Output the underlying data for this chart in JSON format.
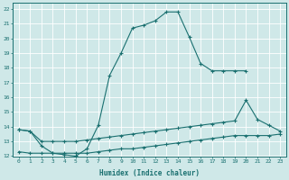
{
  "xlabel": "Humidex (Indice chaleur)",
  "xlim": [
    -0.5,
    23.5
  ],
  "ylim": [
    12,
    22.4
  ],
  "xticks": [
    0,
    1,
    2,
    3,
    4,
    5,
    6,
    7,
    8,
    9,
    10,
    11,
    12,
    13,
    14,
    15,
    16,
    17,
    18,
    19,
    20,
    21,
    22,
    23
  ],
  "yticks": [
    12,
    13,
    14,
    15,
    16,
    17,
    18,
    19,
    20,
    21,
    22
  ],
  "bg_color": "#cfe8e8",
  "line_color": "#1a7070",
  "grid_color": "#ffffff",
  "line1_x": [
    0,
    1,
    2,
    3,
    4,
    5,
    6,
    7,
    8,
    9,
    10,
    11,
    12,
    13,
    14,
    15,
    16,
    17,
    18,
    19,
    20
  ],
  "line1_y": [
    13.8,
    13.7,
    12.7,
    12.2,
    12.1,
    12.0,
    12.5,
    14.1,
    17.5,
    19.0,
    20.7,
    20.9,
    21.2,
    21.8,
    21.8,
    20.1,
    18.3,
    17.8,
    17.8,
    17.8,
    17.8
  ],
  "line2_x": [
    0,
    1,
    2,
    3,
    4,
    5,
    6,
    7,
    8,
    9,
    10,
    11,
    12,
    13,
    14,
    15,
    16,
    17,
    18,
    19,
    20,
    21,
    22,
    23
  ],
  "line2_y": [
    13.8,
    13.7,
    13.0,
    13.0,
    13.0,
    13.0,
    13.1,
    13.2,
    13.3,
    13.4,
    13.5,
    13.6,
    13.7,
    13.8,
    13.9,
    14.0,
    14.1,
    14.2,
    14.3,
    14.4,
    15.8,
    14.5,
    14.1,
    13.7
  ],
  "line3_x": [
    0,
    1,
    2,
    3,
    4,
    5,
    6,
    7,
    8,
    9,
    10,
    11,
    12,
    13,
    14,
    15,
    16,
    17,
    18,
    19,
    20,
    21,
    22,
    23
  ],
  "line3_y": [
    12.3,
    12.2,
    12.2,
    12.2,
    12.2,
    12.2,
    12.2,
    12.3,
    12.4,
    12.5,
    12.5,
    12.6,
    12.7,
    12.8,
    12.9,
    13.0,
    13.1,
    13.2,
    13.3,
    13.4,
    13.4,
    13.4,
    13.4,
    13.5
  ]
}
